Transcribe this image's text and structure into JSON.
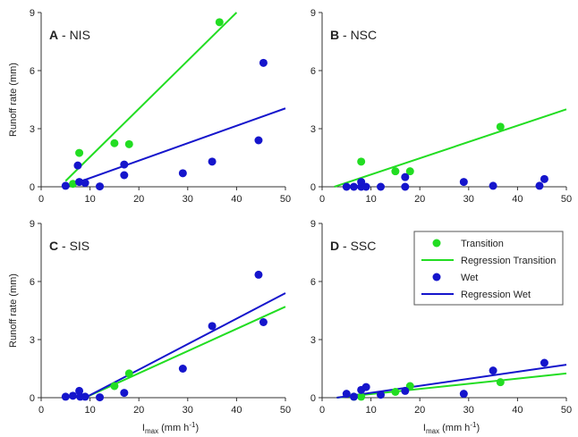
{
  "chart_data": {
    "type": "scatter",
    "xlim": [
      0,
      50
    ],
    "ylim": [
      0,
      9
    ],
    "xticks": [
      0,
      10,
      20,
      30,
      40,
      50
    ],
    "yticks": [
      0,
      3,
      6,
      9
    ],
    "ylabel": "Runoff rate (mm)",
    "xlabel": {
      "main": "I",
      "sub": "max",
      "unit": " (mm h",
      "sup": "-1",
      "close": ")"
    },
    "colors": {
      "transition": "#22dd22",
      "wet": "#1515cc"
    },
    "legend": {
      "placement": "panel D, top-right",
      "items": [
        {
          "label": "Transition",
          "kind": "marker",
          "color": "#22dd22"
        },
        {
          "label": "Regression Transition",
          "kind": "line",
          "color": "#22dd22"
        },
        {
          "label": "Wet",
          "kind": "marker",
          "color": "#1515cc"
        },
        {
          "label": "Regression Wet",
          "kind": "line",
          "color": "#1515cc"
        }
      ]
    },
    "panels": [
      {
        "id": "A",
        "letter": "A",
        "name": " - NIS",
        "transition": [
          [
            6.5,
            0.15
          ],
          [
            7.8,
            1.75
          ],
          [
            15,
            2.25
          ],
          [
            18,
            2.2
          ],
          [
            36.5,
            8.5
          ]
        ],
        "wet": [
          [
            5,
            0.05
          ],
          [
            7.5,
            1.1
          ],
          [
            7.8,
            0.25
          ],
          [
            9,
            0.2
          ],
          [
            12,
            0.02
          ],
          [
            17,
            1.15
          ],
          [
            17,
            0.6
          ],
          [
            29,
            0.7
          ],
          [
            35,
            1.3
          ],
          [
            44.5,
            2.4
          ],
          [
            45.5,
            6.4
          ]
        ],
        "regression_transition": [
          [
            5,
            0.3
          ],
          [
            40,
            9.0
          ]
        ],
        "regression_wet": [
          [
            5,
            0.0
          ],
          [
            50,
            4.05
          ]
        ]
      },
      {
        "id": "B",
        "letter": "B",
        "name": " - NSC",
        "transition": [
          [
            8,
            1.3
          ],
          [
            15,
            0.8
          ],
          [
            18,
            0.8
          ],
          [
            36.5,
            3.1
          ]
        ],
        "wet": [
          [
            5,
            0.0
          ],
          [
            6.5,
            0.0
          ],
          [
            8,
            0.0
          ],
          [
            8,
            0.25
          ],
          [
            9,
            0.0
          ],
          [
            12,
            0.0
          ],
          [
            17,
            0.5
          ],
          [
            17,
            0.0
          ],
          [
            29,
            0.25
          ],
          [
            35,
            0.05
          ],
          [
            44.5,
            0.05
          ],
          [
            45.5,
            0.4
          ]
        ],
        "regression_transition": [
          [
            2.5,
            0.0
          ],
          [
            50,
            4.0
          ]
        ],
        "regression_wet": []
      },
      {
        "id": "C",
        "letter": "C",
        "name": " - SIS",
        "transition": [
          [
            15,
            0.6
          ],
          [
            18,
            1.25
          ]
        ],
        "wet": [
          [
            5,
            0.05
          ],
          [
            6.5,
            0.1
          ],
          [
            7.8,
            0.35
          ],
          [
            8,
            0.05
          ],
          [
            9,
            0.05
          ],
          [
            12,
            0.02
          ],
          [
            17,
            0.25
          ],
          [
            29,
            1.5
          ],
          [
            35,
            3.7
          ],
          [
            44.5,
            6.35
          ],
          [
            45.5,
            3.9
          ]
        ],
        "regression_transition": [
          [
            9,
            0.0
          ],
          [
            50,
            4.7
          ]
        ],
        "regression_wet": [
          [
            9,
            0.0
          ],
          [
            50,
            5.4
          ]
        ]
      },
      {
        "id": "D",
        "letter": "D",
        "name": " - SSC",
        "transition": [
          [
            6.5,
            0.05
          ],
          [
            8,
            0.05
          ],
          [
            15,
            0.3
          ],
          [
            18,
            0.6
          ],
          [
            36.5,
            0.8
          ]
        ],
        "wet": [
          [
            5,
            0.2
          ],
          [
            6.5,
            0.05
          ],
          [
            8,
            0.4
          ],
          [
            9,
            0.55
          ],
          [
            12,
            0.15
          ],
          [
            17,
            0.35
          ],
          [
            29,
            0.2
          ],
          [
            35,
            1.4
          ],
          [
            45.5,
            1.8
          ]
        ],
        "regression_transition": [
          [
            3,
            0.0
          ],
          [
            50,
            1.25
          ]
        ],
        "regression_wet": [
          [
            3,
            0.0
          ],
          [
            50,
            1.7
          ]
        ]
      }
    ]
  }
}
